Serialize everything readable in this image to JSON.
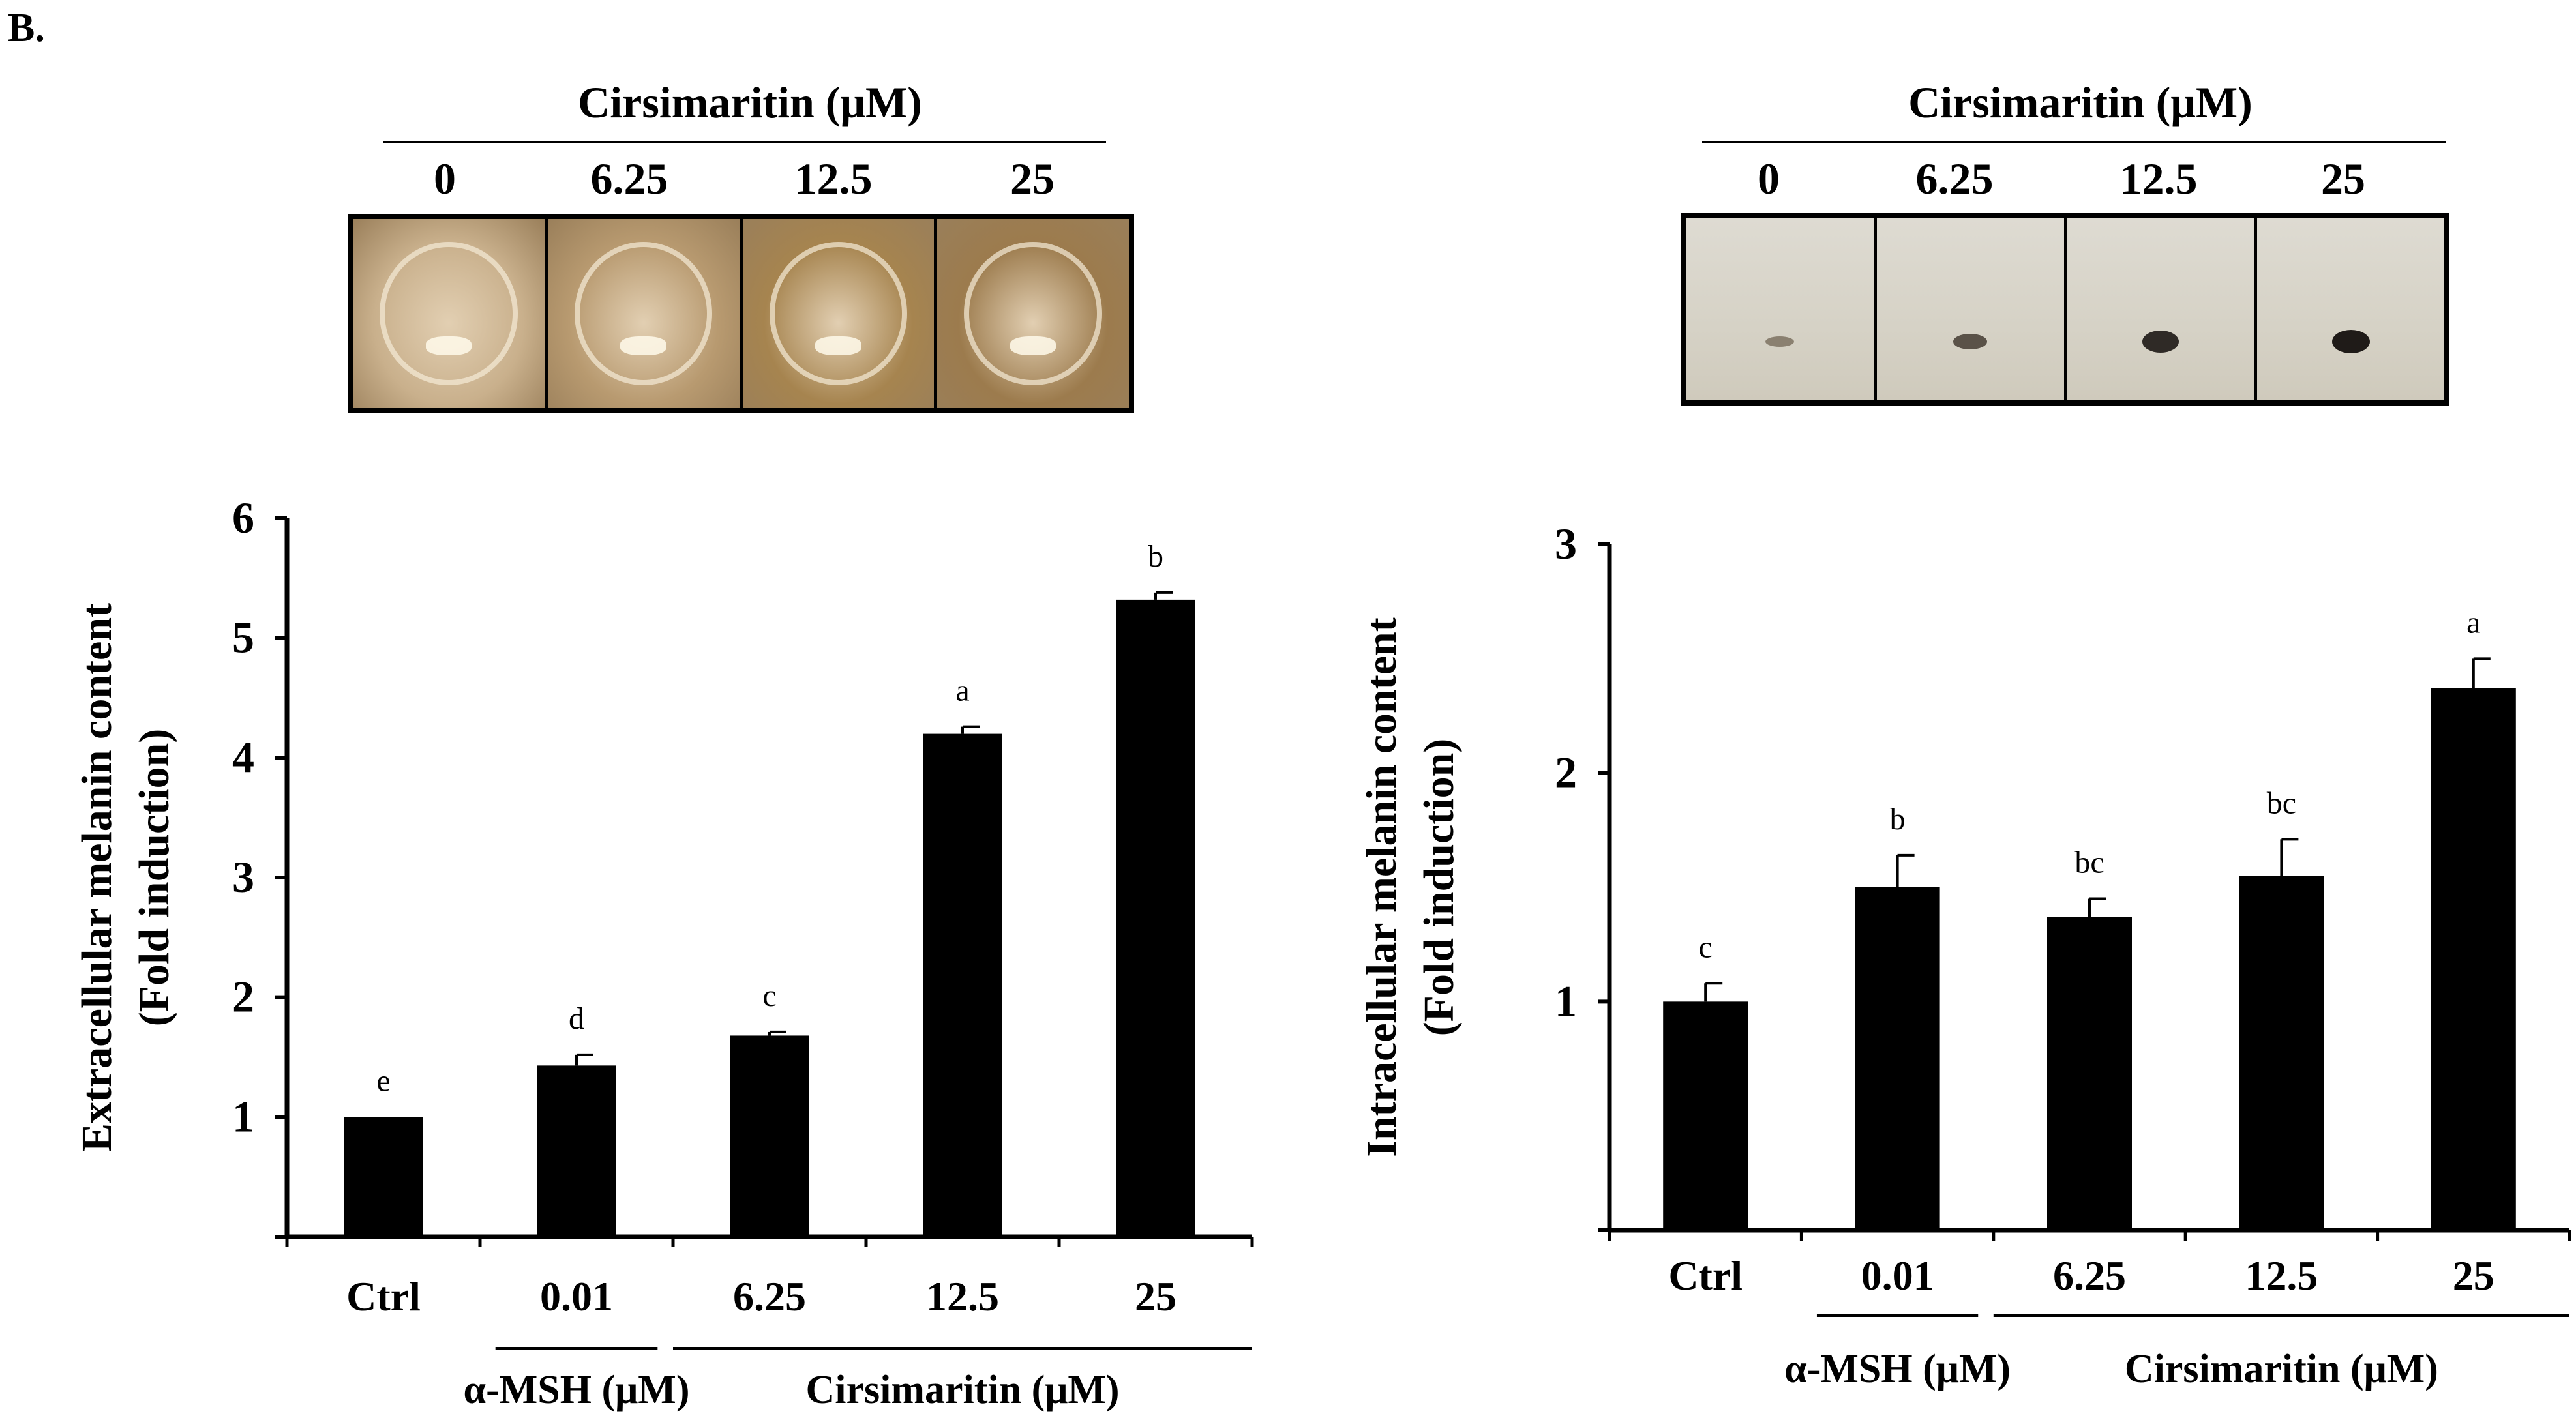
{
  "panel_label": "B.",
  "left_images": {
    "header": "Cirsimaritin  (μM)",
    "concentrations": [
      "0",
      "6.25",
      "12.5",
      "25"
    ],
    "well_colors": [
      "#c9b08c",
      "#b89a70",
      "#a6844f",
      "#9c7b4d"
    ]
  },
  "right_images": {
    "header": "Cirsimaritin  (μM)",
    "concentrations": [
      "0",
      "6.25",
      "12.5",
      "25"
    ],
    "pellet_colors": [
      "#8a8070",
      "#5a5248",
      "#2f2a26",
      "#1f1b18"
    ]
  },
  "chart_data": [
    {
      "type": "bar",
      "title": "",
      "ylabel_line1": "Extracellular  melanin content",
      "ylabel_line2": "(Fold induction)",
      "xlabel": "",
      "ylim": [
        0,
        6
      ],
      "yticks": [
        1,
        2,
        3,
        4,
        5,
        6
      ],
      "categories": [
        "Ctrl",
        "0.01",
        "6.25",
        "12.5",
        "25"
      ],
      "values": [
        1.0,
        1.43,
        1.68,
        4.2,
        5.32
      ],
      "errors": [
        0.0,
        0.09,
        0.03,
        0.06,
        0.06
      ],
      "significance": [
        "e",
        "d",
        "c",
        "a",
        "b"
      ],
      "group_labels": [
        {
          "label": "α-MSH (μM)",
          "categories": [
            "0.01"
          ]
        },
        {
          "label": "Cirsimaritin  (μM)",
          "categories": [
            "6.25",
            "12.5",
            "25"
          ]
        }
      ],
      "bar_color": "#000000"
    },
    {
      "type": "bar",
      "title": "",
      "ylabel_line1": "Intracellular  melanin content",
      "ylabel_line2": "(Fold induction)",
      "xlabel": "",
      "ylim": [
        0,
        3
      ],
      "yticks": [
        1,
        2,
        3
      ],
      "categories": [
        "Ctrl",
        "0.01",
        "6.25",
        "12.5",
        "25"
      ],
      "values": [
        1.0,
        1.5,
        1.37,
        1.55,
        2.37
      ],
      "errors": [
        0.08,
        0.14,
        0.08,
        0.16,
        0.13
      ],
      "significance": [
        "c",
        "b",
        "bc",
        "bc",
        "a"
      ],
      "group_labels": [
        {
          "label": "α-MSH (μM)",
          "categories": [
            "0.01"
          ]
        },
        {
          "label": "Cirsimaritin  (μM)",
          "categories": [
            "6.25",
            "12.5",
            "25"
          ]
        }
      ],
      "bar_color": "#000000"
    }
  ]
}
